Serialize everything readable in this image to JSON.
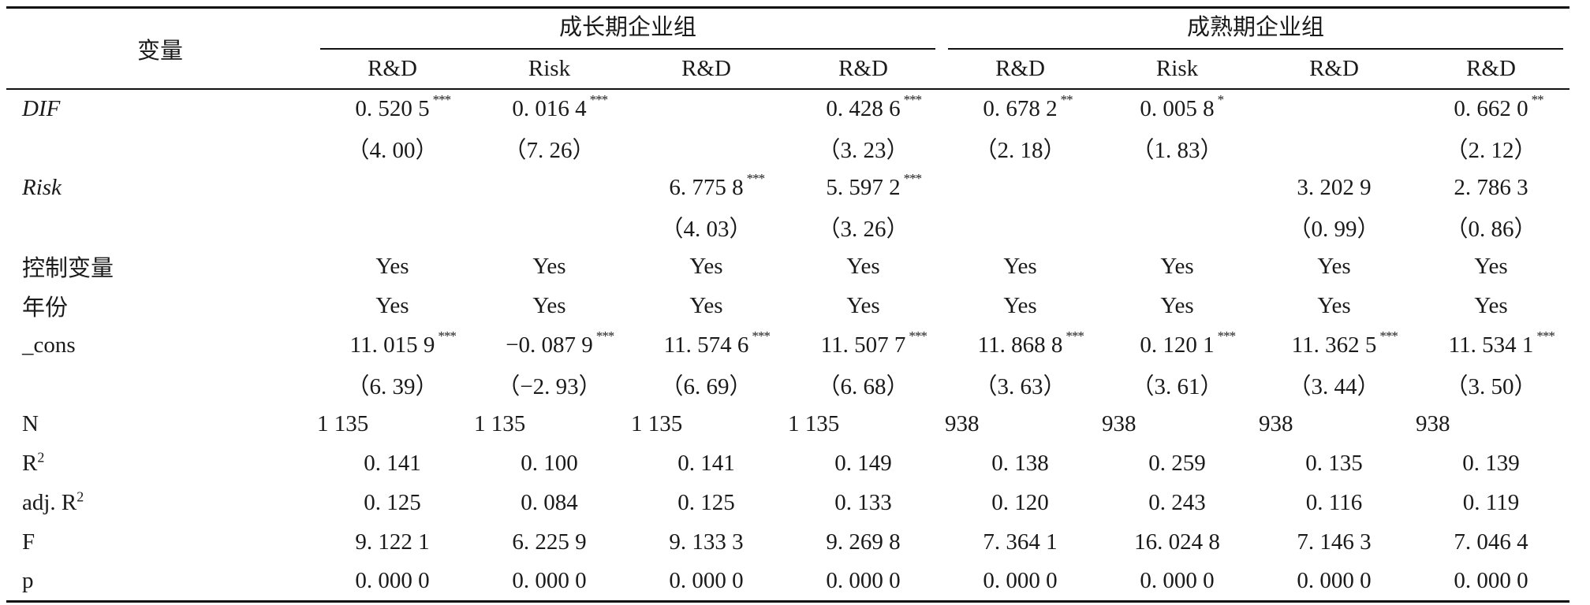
{
  "header": {
    "variable_label": "变量",
    "groups": [
      "成长期企业组",
      "成熟期企业组"
    ],
    "subheaders": [
      "R&D",
      "Risk",
      "R&D",
      "R&D",
      "R&D",
      "Risk",
      "R&D",
      "R&D"
    ]
  },
  "rows": [
    {
      "label": "DIF",
      "italic": true,
      "align": "center",
      "cells": [
        {
          "v": "0. 520 5",
          "s": "***"
        },
        {
          "v": "0. 016 4",
          "s": "***"
        },
        {
          "v": "",
          "s": ""
        },
        {
          "v": "0. 428 6",
          "s": "***"
        },
        {
          "v": "0. 678 2",
          "s": "**"
        },
        {
          "v": "0. 005 8",
          "s": "*"
        },
        {
          "v": "",
          "s": ""
        },
        {
          "v": "0. 662 0",
          "s": "**"
        }
      ]
    },
    {
      "label": "",
      "italic": false,
      "align": "center",
      "cells": [
        {
          "v": "（4. 00）",
          "s": ""
        },
        {
          "v": "（7. 26）",
          "s": ""
        },
        {
          "v": "",
          "s": ""
        },
        {
          "v": "（3. 23）",
          "s": ""
        },
        {
          "v": "（2. 18）",
          "s": ""
        },
        {
          "v": "（1. 83）",
          "s": ""
        },
        {
          "v": "",
          "s": ""
        },
        {
          "v": "（2. 12）",
          "s": ""
        }
      ]
    },
    {
      "label": "Risk",
      "italic": true,
      "align": "center",
      "cells": [
        {
          "v": "",
          "s": ""
        },
        {
          "v": "",
          "s": ""
        },
        {
          "v": "6. 775 8",
          "s": "***"
        },
        {
          "v": "5. 597 2",
          "s": "***"
        },
        {
          "v": "",
          "s": ""
        },
        {
          "v": "",
          "s": ""
        },
        {
          "v": "3. 202 9",
          "s": ""
        },
        {
          "v": "2. 786 3",
          "s": ""
        }
      ]
    },
    {
      "label": "",
      "italic": false,
      "align": "center",
      "cells": [
        {
          "v": "",
          "s": ""
        },
        {
          "v": "",
          "s": ""
        },
        {
          "v": "（4. 03）",
          "s": ""
        },
        {
          "v": "（3. 26）",
          "s": ""
        },
        {
          "v": "",
          "s": ""
        },
        {
          "v": "",
          "s": ""
        },
        {
          "v": "（0. 99）",
          "s": ""
        },
        {
          "v": "（0. 86）",
          "s": ""
        }
      ]
    },
    {
      "label": "控制变量",
      "italic": false,
      "align": "center",
      "cells": [
        {
          "v": "Yes",
          "s": ""
        },
        {
          "v": "Yes",
          "s": ""
        },
        {
          "v": "Yes",
          "s": ""
        },
        {
          "v": "Yes",
          "s": ""
        },
        {
          "v": "Yes",
          "s": ""
        },
        {
          "v": "Yes",
          "s": ""
        },
        {
          "v": "Yes",
          "s": ""
        },
        {
          "v": "Yes",
          "s": ""
        }
      ]
    },
    {
      "label": "年份",
      "italic": false,
      "align": "center",
      "cells": [
        {
          "v": "Yes",
          "s": ""
        },
        {
          "v": "Yes",
          "s": ""
        },
        {
          "v": "Yes",
          "s": ""
        },
        {
          "v": "Yes",
          "s": ""
        },
        {
          "v": "Yes",
          "s": ""
        },
        {
          "v": "Yes",
          "s": ""
        },
        {
          "v": "Yes",
          "s": ""
        },
        {
          "v": "Yes",
          "s": ""
        }
      ]
    },
    {
      "label": "_cons",
      "italic": false,
      "align": "center",
      "cells": [
        {
          "v": "11. 015 9",
          "s": "***"
        },
        {
          "v": "−0. 087 9",
          "s": "***"
        },
        {
          "v": "11. 574 6",
          "s": "***"
        },
        {
          "v": "11. 507 7",
          "s": "***"
        },
        {
          "v": "11. 868 8",
          "s": "***"
        },
        {
          "v": "0. 120 1",
          "s": "***"
        },
        {
          "v": "11. 362 5",
          "s": "***"
        },
        {
          "v": "11. 534 1",
          "s": "***"
        }
      ]
    },
    {
      "label": "",
      "italic": false,
      "align": "center",
      "cells": [
        {
          "v": "（6. 39）",
          "s": ""
        },
        {
          "v": "（−2. 93）",
          "s": ""
        },
        {
          "v": "（6. 69）",
          "s": ""
        },
        {
          "v": "（6. 68）",
          "s": ""
        },
        {
          "v": "（3. 63）",
          "s": ""
        },
        {
          "v": "（3. 61）",
          "s": ""
        },
        {
          "v": "（3. 44）",
          "s": ""
        },
        {
          "v": "（3. 50）",
          "s": ""
        }
      ]
    },
    {
      "label": "N",
      "italic": false,
      "align": "left",
      "cells": [
        {
          "v": "1 135",
          "s": ""
        },
        {
          "v": "1 135",
          "s": ""
        },
        {
          "v": "1 135",
          "s": ""
        },
        {
          "v": "1 135",
          "s": ""
        },
        {
          "v": "938",
          "s": ""
        },
        {
          "v": "938",
          "s": ""
        },
        {
          "v": "938",
          "s": ""
        },
        {
          "v": "938",
          "s": ""
        }
      ]
    },
    {
      "label": "R",
      "sup": "2",
      "italic": false,
      "align": "center",
      "cells": [
        {
          "v": "0. 141",
          "s": ""
        },
        {
          "v": "0. 100",
          "s": ""
        },
        {
          "v": "0. 141",
          "s": ""
        },
        {
          "v": "0. 149",
          "s": ""
        },
        {
          "v": "0. 138",
          "s": ""
        },
        {
          "v": "0. 259",
          "s": ""
        },
        {
          "v": "0. 135",
          "s": ""
        },
        {
          "v": "0. 139",
          "s": ""
        }
      ]
    },
    {
      "label": "adj.  R",
      "sup": "2",
      "italic": false,
      "align": "center",
      "cells": [
        {
          "v": "0. 125",
          "s": ""
        },
        {
          "v": "0. 084",
          "s": ""
        },
        {
          "v": "0. 125",
          "s": ""
        },
        {
          "v": "0. 133",
          "s": ""
        },
        {
          "v": "0. 120",
          "s": ""
        },
        {
          "v": "0. 243",
          "s": ""
        },
        {
          "v": "0. 116",
          "s": ""
        },
        {
          "v": "0. 119",
          "s": ""
        }
      ]
    },
    {
      "label": "F",
      "italic": false,
      "align": "center",
      "cells": [
        {
          "v": "9. 122 1",
          "s": ""
        },
        {
          "v": "6. 225 9",
          "s": ""
        },
        {
          "v": "9. 133 3",
          "s": ""
        },
        {
          "v": "9. 269 8",
          "s": ""
        },
        {
          "v": "7. 364 1",
          "s": ""
        },
        {
          "v": "16. 024 8",
          "s": ""
        },
        {
          "v": "7. 146 3",
          "s": ""
        },
        {
          "v": "7. 046 4",
          "s": ""
        }
      ]
    },
    {
      "label": "p",
      "italic": false,
      "align": "center",
      "cells": [
        {
          "v": "0. 000 0",
          "s": ""
        },
        {
          "v": "0. 000 0",
          "s": ""
        },
        {
          "v": "0. 000 0",
          "s": ""
        },
        {
          "v": "0. 000 0",
          "s": ""
        },
        {
          "v": "0. 000 0",
          "s": ""
        },
        {
          "v": "0. 000 0",
          "s": ""
        },
        {
          "v": "0. 000 0",
          "s": ""
        },
        {
          "v": "0. 000 0",
          "s": ""
        }
      ]
    }
  ]
}
